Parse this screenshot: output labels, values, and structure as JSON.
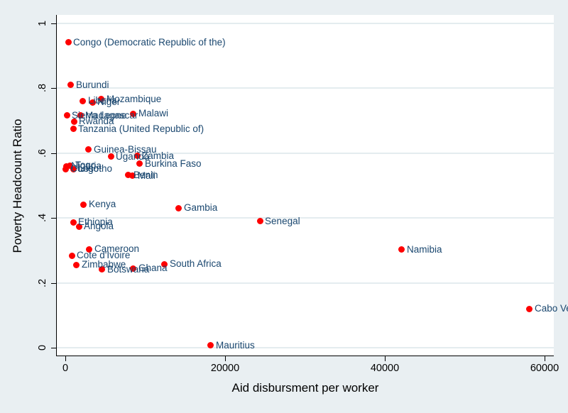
{
  "figure": {
    "background_color": "#e9eff2",
    "plot_background_color": "#ffffff",
    "gridline_color": "#e4ecef",
    "axis_color": "#000000",
    "marker_color": "#fe0000",
    "marker_label_color": "#1a476f"
  },
  "chart_data": {
    "type": "scatter",
    "title": "",
    "xlabel": "Aid disbursment per worker",
    "ylabel": "Poverty Headcount Ratio",
    "xlim": [
      0,
      60000
    ],
    "ylim": [
      0,
      1
    ],
    "x_ticks": [
      0,
      20000,
      40000,
      60000
    ],
    "x_tick_labels": [
      "0",
      "20000",
      "40000",
      "60000"
    ],
    "y_ticks": [
      0,
      0.2,
      0.4,
      0.6,
      0.8,
      1
    ],
    "y_tick_labels": [
      "0",
      ".2",
      ".4",
      ".6",
      ".8",
      "1"
    ],
    "grid": "horizontal",
    "legend": "none",
    "points": [
      {
        "label": "Congo (Democratic Republic of the)",
        "x": 360,
        "y": 0.941
      },
      {
        "label": "Burundi",
        "x": 710,
        "y": 0.81
      },
      {
        "label": "Liberia",
        "x": 2220,
        "y": 0.761
      },
      {
        "label": "Niger",
        "x": 3380,
        "y": 0.757
      },
      {
        "label": "Mozambique",
        "x": 4530,
        "y": 0.766
      },
      {
        "label": "Sierra Leone",
        "x": 180,
        "y": 0.716
      },
      {
        "label": "Rwanda",
        "x": 1070,
        "y": 0.698
      },
      {
        "label": "Madagascar",
        "x": 1870,
        "y": 0.716
      },
      {
        "label": "Malawi",
        "x": 8530,
        "y": 0.722
      },
      {
        "label": "Tanzania (United Republic of)",
        "x": 980,
        "y": 0.674
      },
      {
        "label": "Guinea-Bissau",
        "x": 2930,
        "y": 0.611
      },
      {
        "label": "Uganda",
        "x": 5690,
        "y": 0.589
      },
      {
        "label": "Zambia",
        "x": 8980,
        "y": 0.591
      },
      {
        "label": "Burkina Faso",
        "x": 9330,
        "y": 0.567
      },
      {
        "label": "Nigeria",
        "x": 100,
        "y": 0.56
      },
      {
        "label": "Lesotho",
        "x": 980,
        "y": 0.551
      },
      {
        "label": "Congo",
        "x": 20,
        "y": 0.551
      },
      {
        "label": "Togo",
        "x": 620,
        "y": 0.562
      },
      {
        "label": "Benin",
        "x": 7910,
        "y": 0.532
      },
      {
        "label": "Mali",
        "x": 8440,
        "y": 0.53
      },
      {
        "label": "Kenya",
        "x": 2310,
        "y": 0.442
      },
      {
        "label": "Gambia",
        "x": 14220,
        "y": 0.431
      },
      {
        "label": "Senegal",
        "x": 24360,
        "y": 0.39
      },
      {
        "label": "Ethiopia",
        "x": 980,
        "y": 0.387
      },
      {
        "label": "Angola",
        "x": 1690,
        "y": 0.374
      },
      {
        "label": "Cameroon",
        "x": 3020,
        "y": 0.304
      },
      {
        "label": "Namibia",
        "x": 42130,
        "y": 0.302
      },
      {
        "label": "Cote d'Ivoire",
        "x": 800,
        "y": 0.284
      },
      {
        "label": "South Africa",
        "x": 12440,
        "y": 0.258
      },
      {
        "label": "Zimbabwe",
        "x": 1420,
        "y": 0.256
      },
      {
        "label": "Botswana",
        "x": 4620,
        "y": 0.241
      },
      {
        "label": "Ghana",
        "x": 8530,
        "y": 0.245
      },
      {
        "label": "Cabo Verde",
        "x": 58130,
        "y": 0.12
      },
      {
        "label": "Mauritius",
        "x": 18220,
        "y": 0.007
      }
    ]
  }
}
